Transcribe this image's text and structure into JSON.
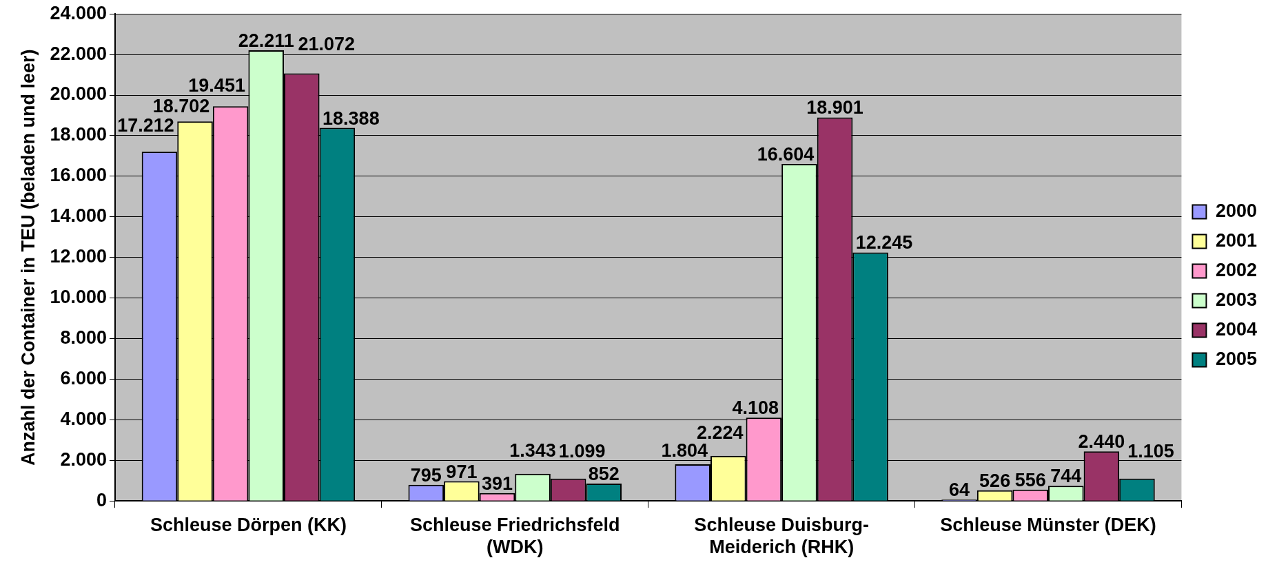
{
  "chart_data": {
    "type": "bar",
    "ylabel": "Anzahl der Container in TEU (beladen und leer)",
    "categories": [
      "Schleuse Dörpen (KK)",
      "Schleuse Friedrichsfeld (WDK)",
      "Schleuse Duisburg-Meiderich (RHK)",
      "Schleuse Münster (DEK)"
    ],
    "series": [
      {
        "name": "2000",
        "color": "#9999ff",
        "values": [
          17212,
          795,
          1804,
          64
        ],
        "value_labels": [
          "17.212",
          "795",
          "1.804",
          "64"
        ]
      },
      {
        "name": "2001",
        "color": "#ffff99",
        "values": [
          18702,
          971,
          2224,
          526
        ],
        "value_labels": [
          "18.702",
          "971",
          "2.224",
          "526"
        ]
      },
      {
        "name": "2002",
        "color": "#ff99cc",
        "values": [
          19451,
          391,
          4108,
          556
        ],
        "value_labels": [
          "19.451",
          "391",
          "4.108",
          "556"
        ]
      },
      {
        "name": "2003",
        "color": "#ccffcc",
        "values": [
          22211,
          1343,
          16604,
          744
        ],
        "value_labels": [
          "22.211",
          "1.343",
          "16.604",
          "744"
        ]
      },
      {
        "name": "2004",
        "color": "#993366",
        "values": [
          21072,
          1099,
          18901,
          2440
        ],
        "value_labels": [
          "21.072",
          "1.099",
          "18.901",
          "2.440"
        ]
      },
      {
        "name": "2005",
        "color": "#008080",
        "values": [
          18388,
          852,
          12245,
          1105
        ],
        "value_labels": [
          "18.388",
          "852",
          "12.245",
          "1.105"
        ]
      }
    ],
    "ylim": [
      0,
      24000
    ],
    "yticks": [
      0,
      {
        "value": 2000,
        "label": "2.000"
      },
      {
        "value": 4000,
        "label": "4.000"
      },
      {
        "value": 6000,
        "label": "6.000"
      },
      {
        "value": 8000,
        "label": "8.000"
      },
      {
        "value": 10000,
        "label": "10.000"
      },
      {
        "value": 12000,
        "label": "12.000"
      },
      {
        "value": 14000,
        "label": "14.000"
      },
      {
        "value": 16000,
        "label": "16.000"
      },
      {
        "value": 18000,
        "label": "18.000"
      },
      {
        "value": 20000,
        "label": "20.000"
      },
      {
        "value": 22000,
        "label": "22.000"
      },
      {
        "value": 24000,
        "label": "24.000"
      }
    ],
    "grid": "y",
    "legend": "right"
  }
}
